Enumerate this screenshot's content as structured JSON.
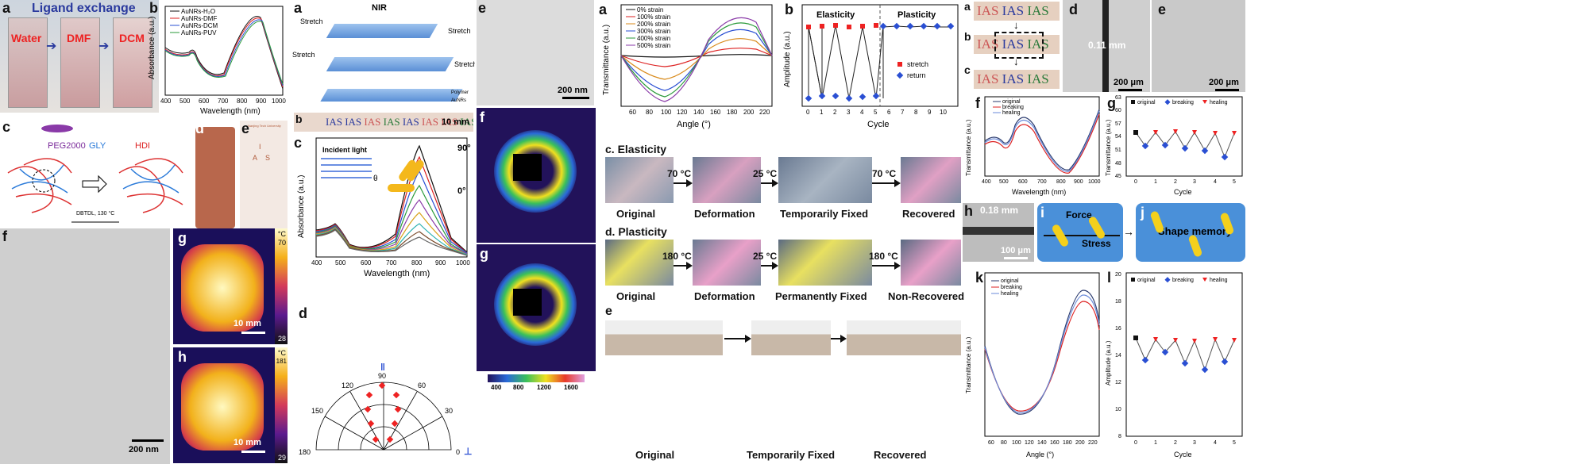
{
  "fig1": {
    "a": {
      "label": "a",
      "title": "Ligand exchange",
      "vials": [
        "Water",
        "DMF",
        "DCM"
      ]
    },
    "b": {
      "label": "b",
      "legend": [
        "AuNRs-H₂O",
        "AuNRs-DMF",
        "AuNRs-DCM",
        "AuNRs-PUV"
      ],
      "xlabel": "Wavelength (nm)",
      "ylabel": "Absorbance (a.u.)",
      "xticks": [
        "400",
        "500",
        "600",
        "700",
        "800",
        "900",
        "1000"
      ]
    },
    "c": {
      "label": "c",
      "peg": "PEG2000",
      "gly": "GLY",
      "hdi": "HDI",
      "cond": "DBTDL, 130 °C"
    },
    "d": {
      "label": "d"
    },
    "e": {
      "label": "e",
      "univ": "Nanjing Tech University",
      "letters": [
        "I",
        "A",
        "S"
      ]
    },
    "f": {
      "label": "f",
      "scale": "200 nm"
    },
    "g": {
      "label": "g",
      "unit": "°C",
      "max": "70",
      "min": "28",
      "scale": "10 mm"
    },
    "h": {
      "label": "h",
      "unit": "°C",
      "max": "181",
      "min": "29",
      "scale": "10 mm"
    }
  },
  "fig2": {
    "a": {
      "label": "a",
      "nir": "NIR",
      "stretch": "Stretch",
      "legend": [
        "Polymer",
        "AuNRs"
      ]
    },
    "b": {
      "label": "b",
      "ias": "IAS",
      "scale": "10 mm"
    },
    "c": {
      "label": "c",
      "incident": "Incident light",
      "theta": "θ",
      "xlabel": "Wavelength (nm)",
      "ylabel": "Absorbance (a.u.)",
      "xticks": [
        "400",
        "500",
        "600",
        "700",
        "800",
        "900",
        "1000"
      ],
      "top": "90°",
      "bottom": "0°"
    },
    "d": {
      "label": "d",
      "angles": [
        "90",
        "120",
        "60",
        "150",
        "30",
        "180",
        "0"
      ],
      "par": "‖",
      "perp": "⊥"
    },
    "e": {
      "label": "e",
      "scale": "200 nm"
    },
    "f": {
      "label": "f"
    },
    "g": {
      "label": "g",
      "cbar": [
        "400",
        "800",
        "1200",
        "1600"
      ]
    }
  },
  "fig3": {
    "a": {
      "label": "a",
      "legend": [
        "0% strain",
        "100% strain",
        "200% strain",
        "300% strain",
        "400% strain",
        "500% strain"
      ],
      "xlabel": "Angle (°)",
      "ylabel": "Transmittance (a.u.)",
      "xticks": [
        "60",
        "80",
        "100",
        "120",
        "140",
        "160",
        "180",
        "200",
        "220"
      ]
    },
    "b": {
      "label": "b",
      "elasticity": "Elasticity",
      "plasticity": "Plasticity",
      "xlabel": "Cycle",
      "ylabel": "Amplitude (a.u.)",
      "legend": [
        "stretch",
        "return"
      ],
      "xticks": [
        "0",
        "1",
        "2",
        "3",
        "4",
        "5",
        "6",
        "7",
        "8",
        "9",
        "10"
      ]
    },
    "c": {
      "label": "c. Elasticity",
      "steps": [
        "Original",
        "Deformation",
        "Temporarily Fixed",
        "Recovered"
      ],
      "temps": [
        "70 °C",
        "25 °C",
        "70 °C"
      ]
    },
    "d": {
      "label": "d. Plasticity",
      "steps": [
        "Original",
        "Deformation",
        "Permanently Fixed",
        "Non-Recovered"
      ],
      "temps": [
        "180 °C",
        "25 °C",
        "180 °C"
      ]
    },
    "e": {
      "label": "e",
      "steps": [
        "Original",
        "Temporarily Fixed",
        "Recovered"
      ]
    }
  },
  "fig4": {
    "a": {
      "label": "a",
      "ias": "IAS"
    },
    "b": {
      "label": "b"
    },
    "c": {
      "label": "c"
    },
    "d": {
      "label": "d",
      "gap": "0.11 mm",
      "scale": "200 μm"
    },
    "e": {
      "label": "e",
      "scale": "200 μm"
    },
    "f": {
      "label": "f",
      "legend": [
        "original",
        "breaking",
        "healing"
      ],
      "xlabel": "Wavelength (nm)",
      "ylabel": "Transmittance (a.u.)",
      "xticks": [
        "400",
        "500",
        "600",
        "700",
        "800",
        "900",
        "1000"
      ]
    },
    "g": {
      "label": "g",
      "legend": [
        "original",
        "breaking",
        "healing"
      ],
      "xlabel": "Cycle",
      "ylabel": "Transmittance (a.u.)",
      "xticks": [
        "0",
        "1",
        "2",
        "3",
        "4",
        "5"
      ],
      "yticks": [
        "45",
        "48",
        "51",
        "54",
        "57",
        "60",
        "63"
      ]
    },
    "h": {
      "label": "h",
      "gap": "0.18 mm",
      "scale": "100 μm"
    },
    "i": {
      "label": "i",
      "force": "Force",
      "stress": "Stress"
    },
    "j": {
      "label": "j",
      "text": "Shape memory"
    },
    "k": {
      "label": "k",
      "legend": [
        "original",
        "breaking",
        "healing"
      ],
      "xlabel": "Angle (°)",
      "ylabel": "Transmittance (a.u.)",
      "xticks": [
        "60",
        "80",
        "100",
        "120",
        "140",
        "160",
        "180",
        "200",
        "220"
      ]
    },
    "l": {
      "label": "l",
      "legend": [
        "original",
        "breaking",
        "healing"
      ],
      "xlabel": "Cycle",
      "ylabel": "Amplitude (a.u.)",
      "xticks": [
        "0",
        "1",
        "2",
        "3",
        "4",
        "5"
      ],
      "yticks": [
        "8",
        "10",
        "12",
        "14",
        "16",
        "18",
        "20"
      ]
    }
  },
  "chart_data": [
    {
      "type": "line",
      "title": "",
      "xlabel": "Wavelength (nm)",
      "ylabel": "Absorbance (a.u.)",
      "xlim": [
        400,
        1000
      ],
      "series": [
        {
          "name": "AuNRs-H₂O",
          "x": [
            400,
            500,
            520,
            600,
            700,
            790,
            900,
            1000
          ],
          "y": [
            0.28,
            0.22,
            0.24,
            0.12,
            0.35,
            0.95,
            0.25,
            0.06
          ]
        },
        {
          "name": "AuNRs-DMF",
          "x": [
            400,
            500,
            520,
            600,
            700,
            795,
            900,
            1000
          ],
          "y": [
            0.27,
            0.21,
            0.23,
            0.11,
            0.33,
            0.93,
            0.27,
            0.07
          ]
        },
        {
          "name": "AuNRs-DCM",
          "x": [
            400,
            500,
            520,
            600,
            700,
            800,
            900,
            1000
          ],
          "y": [
            0.27,
            0.21,
            0.23,
            0.11,
            0.32,
            0.92,
            0.29,
            0.08
          ]
        },
        {
          "name": "AuNRs-PUV",
          "x": [
            400,
            500,
            520,
            600,
            700,
            805,
            900,
            1000
          ],
          "y": [
            0.26,
            0.2,
            0.22,
            0.1,
            0.31,
            0.9,
            0.3,
            0.09
          ]
        }
      ]
    },
    {
      "type": "line",
      "title": "",
      "xlabel": "Wavelength (nm)",
      "ylabel": "Absorbance (a.u.)",
      "xlim": [
        400,
        1000
      ],
      "series": [
        {
          "name": "90°",
          "peak": 0.98
        },
        {
          "name": "",
          "peak": 0.92
        },
        {
          "name": "",
          "peak": 0.8
        },
        {
          "name": "",
          "peak": 0.68
        },
        {
          "name": "",
          "peak": 0.56
        },
        {
          "name": "",
          "peak": 0.45
        },
        {
          "name": "",
          "peak": 0.36
        },
        {
          "name": "",
          "peak": 0.3
        },
        {
          "name": "0°",
          "peak": 0.26
        }
      ]
    },
    {
      "type": "line",
      "title": "",
      "xlabel": "Angle (°)",
      "ylabel": "Transmittance (a.u.)",
      "xlim": [
        45,
        225
      ],
      "series": [
        {
          "name": "0% strain",
          "amp": 0.02
        },
        {
          "name": "100% strain",
          "amp": 0.1
        },
        {
          "name": "200% strain",
          "amp": 0.2
        },
        {
          "name": "300% strain",
          "amp": 0.32
        },
        {
          "name": "400% strain",
          "amp": 0.42
        },
        {
          "name": "500% strain",
          "amp": 0.5
        }
      ]
    },
    {
      "type": "scatter",
      "title": "",
      "xlabel": "Cycle",
      "ylabel": "Amplitude (a.u.)",
      "xlim": [
        -0.5,
        10.5
      ],
      "series": [
        {
          "name": "stretch",
          "x": [
            0,
            1,
            2,
            3,
            4,
            5,
            6,
            7,
            8,
            9,
            10
          ],
          "y": [
            15.6,
            15.8,
            16,
            15.6,
            15.8,
            16,
            15.8,
            15.9,
            15.8,
            15.9,
            15.8
          ]
        },
        {
          "name": "return",
          "x": [
            0,
            1,
            2,
            3,
            4,
            5,
            6,
            7,
            8,
            9,
            10
          ],
          "y": [
            0.8,
            1.4,
            1.5,
            0.9,
            1.3,
            1.4,
            15.7,
            15.8,
            15.8,
            15.8,
            15.8
          ]
        }
      ]
    },
    {
      "type": "scatter",
      "title": "",
      "xlabel": "Cycle",
      "ylabel": "Transmittance (a.u.)",
      "ylim": [
        45,
        63
      ],
      "series": [
        {
          "name": "original",
          "x": [
            0
          ],
          "y": [
            53.5
          ]
        },
        {
          "name": "breaking",
          "x": [
            0.5,
            1.5,
            2.5,
            3.5,
            4.5
          ],
          "y": [
            50.5,
            50.8,
            50.2,
            49.5,
            48
          ]
        },
        {
          "name": "healing",
          "x": [
            1,
            2,
            3,
            4,
            5
          ],
          "y": [
            53.5,
            53.6,
            53.4,
            53.2,
            53.3
          ]
        }
      ]
    },
    {
      "type": "scatter",
      "title": "",
      "xlabel": "Cycle",
      "ylabel": "Amplitude (a.u.)",
      "ylim": [
        8,
        20
      ],
      "series": [
        {
          "name": "original",
          "x": [
            0
          ],
          "y": [
            14.5
          ]
        },
        {
          "name": "breaking",
          "x": [
            0.5,
            1.5,
            2.5,
            3.5,
            4.5
          ],
          "y": [
            11.8,
            12.8,
            11.5,
            11,
            11.6
          ]
        },
        {
          "name": "healing",
          "x": [
            1,
            2,
            3,
            4,
            5
          ],
          "y": [
            14.3,
            14.2,
            14.1,
            14.3,
            14.2
          ]
        }
      ]
    }
  ]
}
